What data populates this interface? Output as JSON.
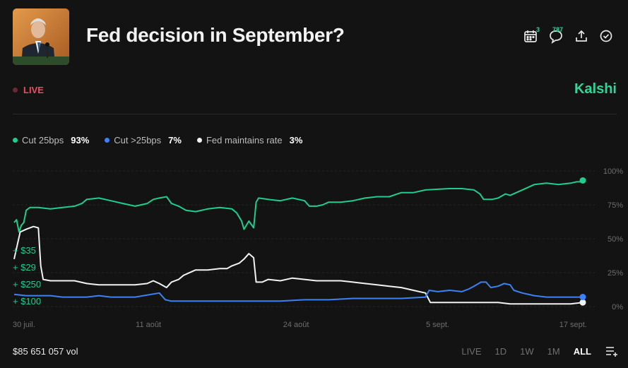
{
  "header": {
    "title": "Fed decision in September?",
    "thumbnail_alt": "Jerome Powell",
    "calendar_badge": "3",
    "comments_count": "787"
  },
  "status": {
    "live_label": "LIVE",
    "brand": "Kalshi"
  },
  "legend": [
    {
      "name": "Cut 25bps",
      "value": "93%",
      "color": "#1fce8e"
    },
    {
      "name": "Cut >25bps",
      "value": "7%",
      "color": "#3b82f6"
    },
    {
      "name": "Fed maintains rate",
      "value": "3%",
      "color": "#f2f2f2"
    }
  ],
  "trades": [
    "+ $35",
    "+ $29",
    "+ $250",
    "+ $100"
  ],
  "footer": {
    "volume": "$85 651 057 vol",
    "ranges": [
      "LIVE",
      "1D",
      "1W",
      "1M",
      "ALL"
    ],
    "active_range": "ALL"
  },
  "chart_data": {
    "type": "line",
    "x_ticks": [
      "30 juil.",
      "11 août",
      "24 août",
      "5 sept.",
      "17 sept."
    ],
    "y_ticks": [
      "100%",
      "75%",
      "50%",
      "25%",
      "0%"
    ],
    "ylim": [
      0,
      100
    ],
    "series": [
      {
        "name": "Cut 25bps",
        "color": "#1fce8e",
        "points": [
          [
            0,
            62
          ],
          [
            0.2,
            64
          ],
          [
            0.4,
            55
          ],
          [
            0.6,
            60
          ],
          [
            0.8,
            62
          ],
          [
            1.0,
            71
          ],
          [
            1.3,
            73
          ],
          [
            2,
            73
          ],
          [
            3,
            72
          ],
          [
            4,
            73
          ],
          [
            5,
            74
          ],
          [
            5.6,
            76
          ],
          [
            6,
            79
          ],
          [
            7,
            80
          ],
          [
            8,
            78
          ],
          [
            9,
            76
          ],
          [
            10,
            74
          ],
          [
            11,
            76
          ],
          [
            11.5,
            79
          ],
          [
            12,
            80
          ],
          [
            12.6,
            81
          ],
          [
            13,
            76
          ],
          [
            13.6,
            74
          ],
          [
            14.2,
            71
          ],
          [
            15,
            70
          ],
          [
            16,
            72
          ],
          [
            17,
            73
          ],
          [
            18,
            72
          ],
          [
            18.4,
            69
          ],
          [
            18.8,
            63
          ],
          [
            19.0,
            57
          ],
          [
            19.4,
            63
          ],
          [
            19.8,
            58
          ],
          [
            20.0,
            77
          ],
          [
            20.2,
            80
          ],
          [
            21,
            79
          ],
          [
            22,
            78
          ],
          [
            23,
            80
          ],
          [
            24,
            78
          ],
          [
            24.4,
            74
          ],
          [
            25,
            74
          ],
          [
            25.5,
            75
          ],
          [
            26,
            77
          ],
          [
            27,
            77
          ],
          [
            28,
            78
          ],
          [
            29,
            80
          ],
          [
            30,
            81
          ],
          [
            31,
            81
          ],
          [
            32,
            84
          ],
          [
            33,
            84
          ],
          [
            34,
            86
          ],
          [
            36,
            87
          ],
          [
            37,
            87
          ],
          [
            38,
            86
          ],
          [
            38.5,
            83
          ],
          [
            38.8,
            79
          ],
          [
            39.5,
            79
          ],
          [
            40,
            80
          ],
          [
            40.6,
            83
          ],
          [
            41,
            82
          ],
          [
            42,
            86
          ],
          [
            43,
            90
          ],
          [
            44,
            91
          ],
          [
            45,
            90
          ],
          [
            46,
            91
          ],
          [
            46.5,
            92
          ],
          [
            46.8,
            92
          ],
          [
            47,
            93
          ]
        ]
      },
      {
        "name": "Cut >25bps",
        "color": "#3b82f6",
        "points": [
          [
            0,
            9
          ],
          [
            1,
            8
          ],
          [
            2,
            8
          ],
          [
            3,
            8
          ],
          [
            4,
            7
          ],
          [
            5,
            7
          ],
          [
            6,
            7
          ],
          [
            7,
            8
          ],
          [
            8,
            7
          ],
          [
            9,
            7
          ],
          [
            10,
            7
          ],
          [
            12,
            10
          ],
          [
            12.5,
            5
          ],
          [
            13,
            4
          ],
          [
            15,
            4
          ],
          [
            17,
            4
          ],
          [
            19,
            4
          ],
          [
            20,
            4
          ],
          [
            22,
            4
          ],
          [
            24,
            5
          ],
          [
            26,
            5
          ],
          [
            28,
            6
          ],
          [
            30,
            6
          ],
          [
            32,
            6
          ],
          [
            34,
            7
          ],
          [
            34.3,
            12
          ],
          [
            35,
            11
          ],
          [
            36,
            12
          ],
          [
            37,
            11
          ],
          [
            37.6,
            13
          ],
          [
            38,
            15
          ],
          [
            38.6,
            18
          ],
          [
            39,
            18
          ],
          [
            39.4,
            14
          ],
          [
            40,
            15
          ],
          [
            40.5,
            17
          ],
          [
            41,
            16
          ],
          [
            41.3,
            12
          ],
          [
            42,
            10
          ],
          [
            43,
            8
          ],
          [
            44,
            7
          ],
          [
            45,
            7
          ],
          [
            46,
            7
          ],
          [
            47,
            7
          ]
        ]
      },
      {
        "name": "Fed maintains rate",
        "color": "#f2f2f2",
        "points": [
          [
            0,
            35
          ],
          [
            0.5,
            55
          ],
          [
            1,
            57
          ],
          [
            1.6,
            59
          ],
          [
            2,
            58
          ],
          [
            2.2,
            30
          ],
          [
            2.4,
            20
          ],
          [
            3,
            19
          ],
          [
            4,
            19
          ],
          [
            5,
            19
          ],
          [
            6,
            17
          ],
          [
            7,
            16
          ],
          [
            8,
            16
          ],
          [
            9,
            16
          ],
          [
            10,
            16
          ],
          [
            11,
            17
          ],
          [
            11.5,
            19
          ],
          [
            12,
            17
          ],
          [
            12.6,
            14
          ],
          [
            13,
            18
          ],
          [
            13.6,
            20
          ],
          [
            14,
            23
          ],
          [
            15,
            27
          ],
          [
            16,
            27
          ],
          [
            17,
            28
          ],
          [
            17.6,
            28
          ],
          [
            18,
            30
          ],
          [
            18.6,
            32
          ],
          [
            19,
            35
          ],
          [
            19.4,
            39
          ],
          [
            19.8,
            36
          ],
          [
            20,
            18
          ],
          [
            20.5,
            18
          ],
          [
            21,
            20
          ],
          [
            22,
            19
          ],
          [
            23,
            21
          ],
          [
            24,
            20
          ],
          [
            25,
            19
          ],
          [
            26,
            19
          ],
          [
            27,
            19
          ],
          [
            28,
            18
          ],
          [
            29,
            17
          ],
          [
            30,
            16
          ],
          [
            31,
            15
          ],
          [
            32,
            14
          ],
          [
            33,
            12
          ],
          [
            34,
            10
          ],
          [
            34.4,
            3
          ],
          [
            35,
            3
          ],
          [
            36,
            3
          ],
          [
            37,
            3
          ],
          [
            38,
            3
          ],
          [
            39,
            3
          ],
          [
            40,
            3
          ],
          [
            41,
            2
          ],
          [
            42,
            2
          ],
          [
            43,
            2
          ],
          [
            44,
            2
          ],
          [
            45,
            2
          ],
          [
            46,
            2
          ],
          [
            47,
            3
          ]
        ]
      }
    ]
  }
}
